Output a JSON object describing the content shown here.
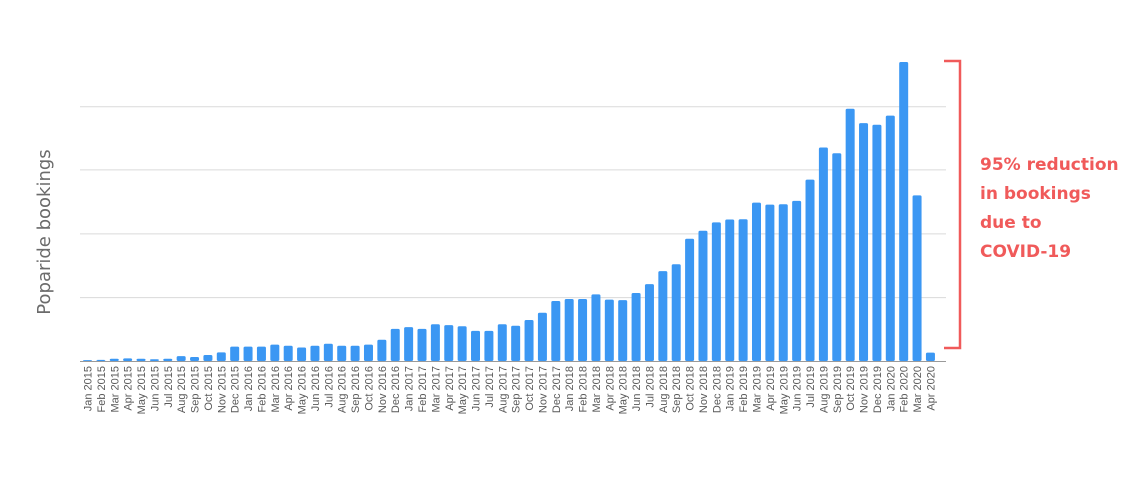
{
  "chart_data": {
    "type": "bar",
    "ylabel": "Poparide bookings",
    "grid": true,
    "y_tick_labels_shown": false,
    "ylim": [
      0,
      100
    ],
    "colors": {
      "bar": "#3b97f3",
      "annotation": "#f05a5a"
    },
    "categories": [
      "Jan 2015",
      "Feb 2015",
      "Mar 2015",
      "Apr 2015",
      "May 2015",
      "Jun 2015",
      "Jul 2015",
      "Aug 2015",
      "Sep 2015",
      "Oct 2015",
      "Nov 2015",
      "Dec 2015",
      "Jan 2016",
      "Feb 2016",
      "Mar 2016",
      "Apr 2016",
      "May 2016",
      "Jun 2016",
      "Jul 2016",
      "Aug 2016",
      "Sep 2016",
      "Oct 2016",
      "Nov 2016",
      "Dec 2016",
      "Jan 2017",
      "Feb 2017",
      "Mar 2017",
      "Apr 2017",
      "May 2017",
      "Jun 2017",
      "Jul 2017",
      "Aug 2017",
      "Sep 2017",
      "Oct 2017",
      "Nov 2017",
      "Dec 2017",
      "Jan 2018",
      "Feb 2018",
      "Mar 2018",
      "Apr 2018",
      "May 2018",
      "Jun 2018",
      "Jul 2018",
      "Aug 2018",
      "Sep 2018",
      "Oct 2018",
      "Nov 2018",
      "Dec 2018",
      "Jan 2019",
      "Feb 2019",
      "Mar 2019",
      "Apr 2019",
      "May 2019",
      "Jun 2019",
      "Jul 2019",
      "Aug 2019",
      "Sep 2019",
      "Oct 2019",
      "Nov 2019",
      "Dec 2019",
      "Jan 2020",
      "Feb 2020",
      "Mar 2020",
      "Apr 2020"
    ],
    "values": [
      0.3,
      0.4,
      0.8,
      0.9,
      0.8,
      0.6,
      0.8,
      1.7,
      1.4,
      2.1,
      3.0,
      5.0,
      5.0,
      5.0,
      5.7,
      5.3,
      4.7,
      5.3,
      6.0,
      5.3,
      5.3,
      5.7,
      7.4,
      11.2,
      11.8,
      11.2,
      12.8,
      12.5,
      12.1,
      10.5,
      10.5,
      12.8,
      12.3,
      14.3,
      16.8,
      20.9,
      21.6,
      21.6,
      23.2,
      21.4,
      21.2,
      23.7,
      26.8,
      31.3,
      33.7,
      42.6,
      45.4,
      48.3,
      49.3,
      49.4,
      55.2,
      54.5,
      54.6,
      55.8,
      63.2,
      74.4,
      72.4,
      87.9,
      82.9,
      82.3,
      85.5,
      104.2,
      57.7,
      2.9
    ],
    "annotation": {
      "lines": [
        "95% reduction",
        "in bookings",
        "due to",
        "COVID-19"
      ]
    }
  }
}
